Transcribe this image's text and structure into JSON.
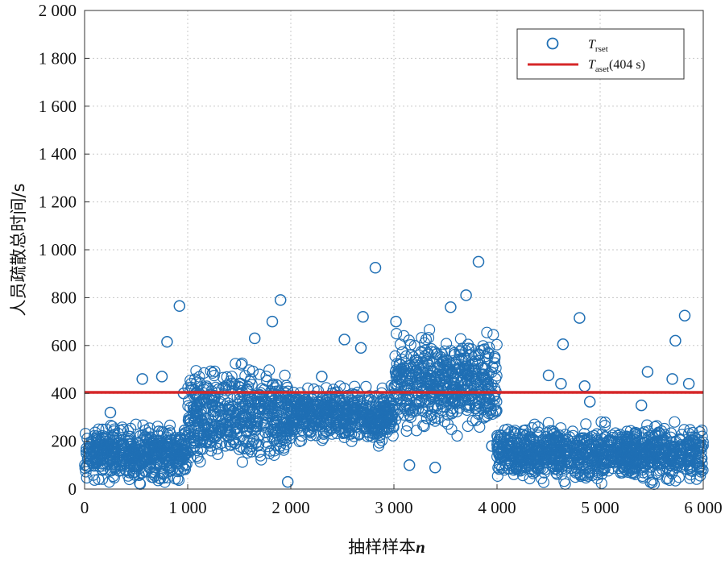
{
  "chart_data": {
    "type": "scatter",
    "title": "",
    "xlabel": "抽样样本",
    "xlabel_var": "n",
    "ylabel": "人员疏散总时间/s",
    "xlim": [
      0,
      6000
    ],
    "ylim": [
      0,
      2000
    ],
    "x_ticks": [
      0,
      1000,
      2000,
      3000,
      4000,
      5000,
      6000
    ],
    "x_tick_labels": [
      "0",
      "1 000",
      "2 000",
      "3 000",
      "4 000",
      "5 000",
      "6 000"
    ],
    "y_ticks": [
      0,
      200,
      400,
      600,
      800,
      1000,
      1200,
      1400,
      1600,
      1800,
      2000
    ],
    "y_tick_labels": [
      "0",
      "200",
      "400",
      "600",
      "800",
      "1 000",
      "1 200",
      "1 400",
      "1 600",
      "1 800",
      "2 000"
    ],
    "grid": true,
    "legend_position": "top-right",
    "series": [
      {
        "name": "T_rset",
        "kind": "scatter",
        "color": "#1f6fb4",
        "segments": [
          {
            "x_range": [
              0,
              1000
            ],
            "y_range": [
              0,
              300
            ]
          },
          {
            "x_range": [
              1000,
              2000
            ],
            "y_range": [
              40,
              560
            ]
          },
          {
            "x_range": [
              2000,
              3000
            ],
            "y_range": [
              160,
              460
            ]
          },
          {
            "x_range": [
              3000,
              4000
            ],
            "y_range": [
              190,
              700
            ]
          },
          {
            "x_range": [
              4000,
              5000
            ],
            "y_range": [
              0,
              300
            ]
          },
          {
            "x_range": [
              5000,
              6000
            ],
            "y_range": [
              0,
              300
            ]
          }
        ],
        "outliers": [
          [
            250,
            320
          ],
          [
            560,
            460
          ],
          [
            750,
            470
          ],
          [
            800,
            615
          ],
          [
            920,
            765
          ],
          [
            960,
            400
          ],
          [
            1900,
            790
          ],
          [
            1820,
            700
          ],
          [
            1650,
            630
          ],
          [
            1970,
            30
          ],
          [
            2520,
            625
          ],
          [
            2680,
            590
          ],
          [
            2700,
            720
          ],
          [
            2820,
            925
          ],
          [
            2300,
            470
          ],
          [
            3020,
            700
          ],
          [
            3820,
            950
          ],
          [
            3700,
            810
          ],
          [
            3550,
            760
          ],
          [
            3150,
            100
          ],
          [
            3400,
            90
          ],
          [
            3950,
            180
          ],
          [
            4500,
            475
          ],
          [
            4620,
            440
          ],
          [
            4800,
            715
          ],
          [
            4640,
            605
          ],
          [
            4850,
            430
          ],
          [
            4900,
            365
          ],
          [
            5460,
            490
          ],
          [
            5730,
            620
          ],
          [
            5700,
            460
          ],
          [
            5820,
            725
          ],
          [
            5860,
            440
          ],
          [
            5400,
            350
          ]
        ]
      },
      {
        "name": "T_aset",
        "kind": "line",
        "value": 404,
        "color": "#d62728"
      }
    ],
    "legend": [
      {
        "symbol": "circle",
        "main": "T",
        "sub": "rset",
        "suffix": ""
      },
      {
        "symbol": "line",
        "main": "T",
        "sub": "aset",
        "suffix": "(404 s)"
      }
    ]
  }
}
